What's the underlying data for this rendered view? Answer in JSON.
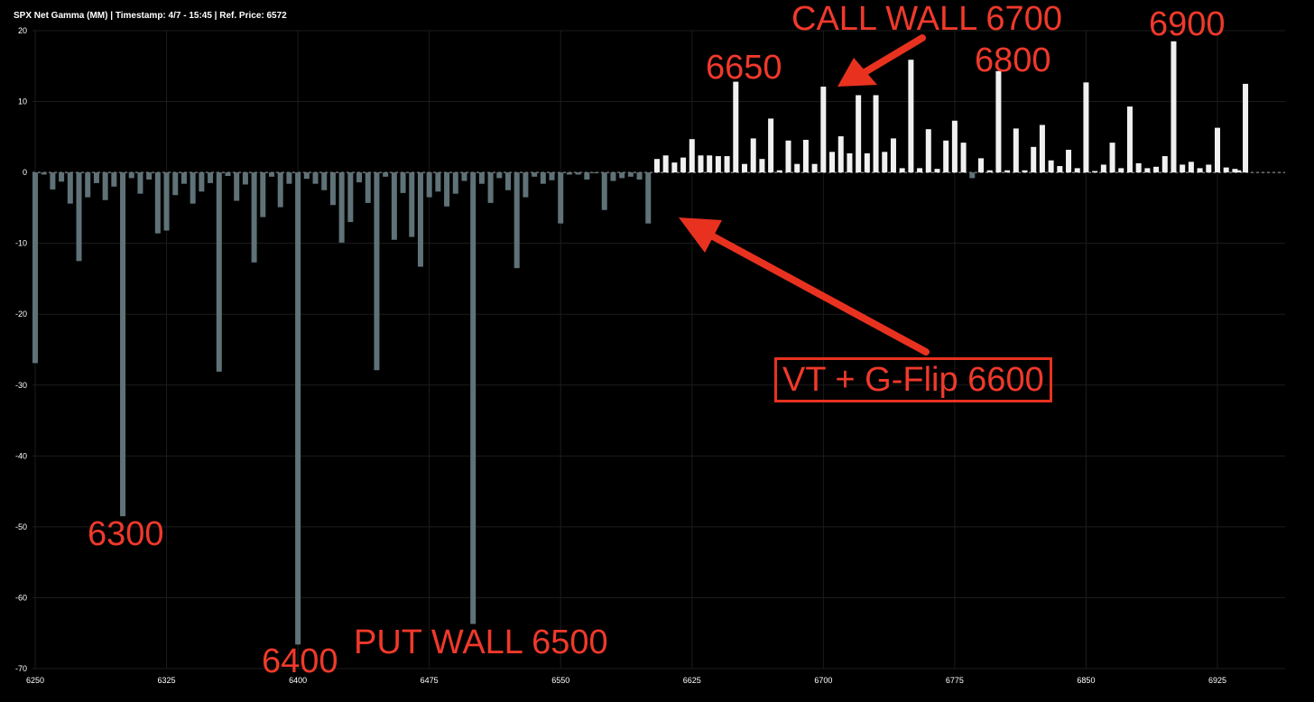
{
  "title": "SPX Net Gamma (MM) | Timestamp: 4/7 - 15:45  | Ref. Price: 6572",
  "annotations": {
    "a6300": "6300",
    "a6400": "6400",
    "put_wall": "PUT WALL 6500",
    "a6650": "6650",
    "call_wall": "CALL WALL 6700",
    "a6800": "6800",
    "a6900": "6900",
    "flip": "VT + G-Flip 6600"
  },
  "colors": {
    "negative_bar": "#5f7278",
    "positive_bar": "#f0f0f0",
    "annotation": "#f0392b",
    "background": "#000000"
  },
  "chart_data": {
    "type": "bar",
    "title": "SPX Net Gamma (MM) | Timestamp: 4/7 - 15:45  | Ref. Price: 6572",
    "xlim": [
      6250,
      6935
    ],
    "ylim": [
      -70,
      20
    ],
    "x_ticks": [
      6250,
      6325,
      6400,
      6475,
      6550,
      6625,
      6700,
      6775,
      6850,
      6925
    ],
    "y_ticks": [
      20,
      10,
      0,
      -10,
      -20,
      -30,
      -40,
      -50,
      -60,
      -70
    ],
    "grid": true,
    "x": [
      6250,
      6255,
      6260,
      6265,
      6270,
      6275,
      6280,
      6285,
      6290,
      6295,
      6300,
      6305,
      6310,
      6315,
      6320,
      6325,
      6330,
      6335,
      6340,
      6345,
      6350,
      6355,
      6360,
      6365,
      6370,
      6375,
      6380,
      6385,
      6390,
      6395,
      6400,
      6405,
      6410,
      6415,
      6420,
      6425,
      6430,
      6435,
      6440,
      6445,
      6450,
      6455,
      6460,
      6465,
      6470,
      6475,
      6480,
      6485,
      6490,
      6495,
      6500,
      6505,
      6510,
      6515,
      6520,
      6525,
      6530,
      6535,
      6540,
      6545,
      6550,
      6555,
      6560,
      6565,
      6570,
      6575,
      6580,
      6585,
      6590,
      6595,
      6600,
      6605,
      6610,
      6615,
      6620,
      6625,
      6630,
      6635,
      6640,
      6645,
      6650,
      6655,
      6660,
      6665,
      6670,
      6675,
      6680,
      6685,
      6690,
      6695,
      6700,
      6705,
      6710,
      6715,
      6720,
      6725,
      6730,
      6735,
      6740,
      6745,
      6750,
      6755,
      6760,
      6765,
      6770,
      6775,
      6780,
      6785,
      6790,
      6795,
      6800,
      6805,
      6810,
      6815,
      6820,
      6825,
      6830,
      6835,
      6840,
      6845,
      6850,
      6855,
      6860,
      6865,
      6870,
      6875,
      6880,
      6885,
      6890,
      6895,
      6900,
      6905,
      6910,
      6915,
      6920,
      6925,
      6930,
      6935
    ],
    "values": [
      -26.9,
      -0.3,
      -2.4,
      -1.3,
      -4.4,
      -12.5,
      -3.5,
      -1.5,
      -3.9,
      -2.0,
      -48.5,
      -0.8,
      -3.0,
      -1.0,
      -8.6,
      -8.2,
      -3.2,
      -1.6,
      -4.4,
      -2.7,
      -1.5,
      -28.1,
      -0.5,
      -4.0,
      -1.7,
      -12.7,
      -6.3,
      -0.6,
      -4.9,
      -1.6,
      -66.6,
      -0.9,
      -1.6,
      -2.5,
      -4.6,
      -9.9,
      -7.0,
      -1.4,
      -4.3,
      -27.9,
      -0.6,
      -9.5,
      -2.9,
      -9.1,
      -13.3,
      -3.5,
      -2.7,
      -4.8,
      -3.0,
      -1.2,
      -63.7,
      -1.6,
      -4.3,
      -0.8,
      -2.5,
      -13.5,
      -3.5,
      -0.6,
      -1.6,
      -1.1,
      -7.2,
      -0.3,
      -0.3,
      -1.0,
      -0.1,
      -5.3,
      -1.2,
      -0.8,
      -0.6,
      -1.0,
      -7.2,
      1.9,
      2.4,
      1.4,
      2.1,
      4.7,
      2.4,
      2.4,
      2.3,
      2.3,
      12.8,
      1.2,
      4.8,
      1.9,
      7.6,
      0.3,
      4.5,
      1.2,
      4.6,
      1.2,
      12.1,
      2.9,
      5.1,
      2.7,
      10.9,
      2.7,
      10.9,
      2.9,
      4.8,
      0.6,
      15.9,
      0.6,
      6.1,
      0.5,
      4.5,
      7.3,
      4.2,
      -0.8,
      2.0,
      0.3,
      14.3,
      0.3,
      6.2,
      0.3,
      3.6,
      6.7,
      1.7,
      0.9,
      3.2,
      0.6,
      12.7,
      0.2,
      1.1,
      4.2,
      0.6,
      9.3,
      1.3,
      0.6,
      0.8,
      2.3,
      18.5,
      1.1,
      1.5,
      0.6,
      1.1,
      6.3,
      0.7,
      0.5
    ],
    "extra_bars": [
      {
        "x": 6937,
        "value": 0.3
      },
      {
        "x": 6941,
        "value": 12.5
      }
    ],
    "xlabel": "",
    "ylabel": ""
  }
}
